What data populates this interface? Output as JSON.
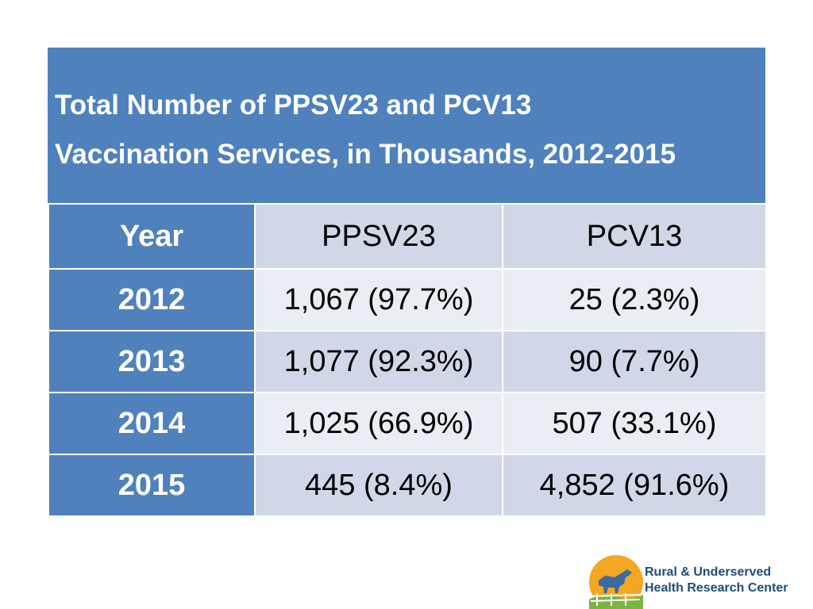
{
  "title_lines": [
    "Total Number of PPSV23 and PCV13",
    "Vaccination Services, in Thousands, 2012-2015"
  ],
  "header": {
    "year": "Year",
    "ppsv23": "PPSV23",
    "pcv13": "PCV13"
  },
  "rows": [
    {
      "year": "2012",
      "ppsv23": "1,067 (97.7%)",
      "pcv13": "25 (2.3%)"
    },
    {
      "year": "2013",
      "ppsv23": "1,077 (92.3%)",
      "pcv13": "90 (7.7%)"
    },
    {
      "year": "2014",
      "ppsv23": "1,025 (66.9%)",
      "pcv13": "507 (33.1%)"
    },
    {
      "year": "2015",
      "ppsv23": "445 (8.4%)",
      "pcv13": "4,852 (91.6%)"
    }
  ],
  "logo": {
    "line1": "Rural & Underserved",
    "line2": "Health Research Center"
  },
  "colors": {
    "header_blue": "#4f81bd",
    "band_light": "#e9edf4",
    "band_dark": "#d0d8e8",
    "logo_text": "#1f4e79"
  },
  "chart_data": {
    "type": "table",
    "title": "Total Number of PPSV23 and PCV13 Vaccination Services, in Thousands, 2012-2015",
    "columns": [
      "Year",
      "PPSV23",
      "PCV13"
    ],
    "x": [
      2012,
      2013,
      2014,
      2015
    ],
    "series": [
      {
        "name": "PPSV23",
        "values": [
          1067,
          1077,
          1025,
          445
        ],
        "percent": [
          97.7,
          92.3,
          66.9,
          8.4
        ]
      },
      {
        "name": "PCV13",
        "values": [
          25,
          90,
          507,
          4852
        ],
        "percent": [
          2.3,
          7.7,
          33.1,
          91.6
        ]
      }
    ]
  }
}
